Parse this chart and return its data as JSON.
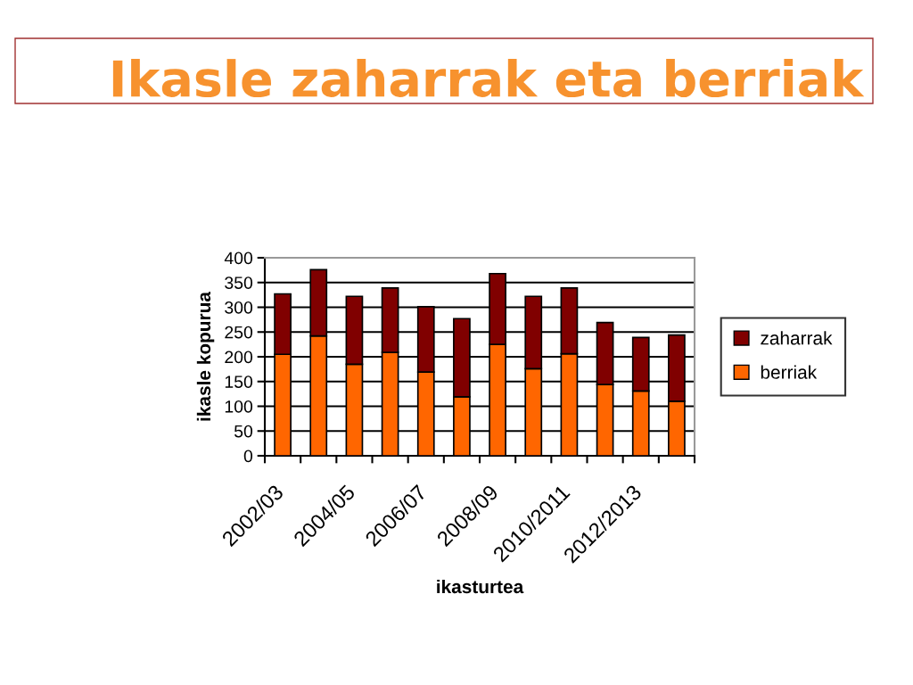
{
  "chart_data": {
    "type": "bar",
    "title": "Ikasle zaharrak eta berriak",
    "xlabel": "ikasturtea",
    "ylabel": "ikasle kopurua",
    "categories": [
      "2002/03",
      null,
      "2004/05",
      null,
      "2006/07",
      null,
      "2008/09",
      null,
      "2010/2011",
      null,
      "2012/2013",
      null
    ],
    "stacked": true,
    "series": [
      {
        "name": "berriak",
        "color": "#ff6600",
        "values": [
          205,
          242,
          185,
          209,
          169,
          119,
          225,
          176,
          206,
          144,
          131,
          110
        ]
      },
      {
        "name": "zaharrak",
        "color": "#800000",
        "values": [
          122,
          134,
          137,
          130,
          132,
          158,
          143,
          146,
          133,
          125,
          108,
          134
        ]
      }
    ],
    "ylim": [
      0,
      400
    ],
    "yticks": [
      0,
      50,
      100,
      150,
      200,
      250,
      300,
      350,
      400
    ],
    "grid": "y",
    "legend": "right"
  }
}
